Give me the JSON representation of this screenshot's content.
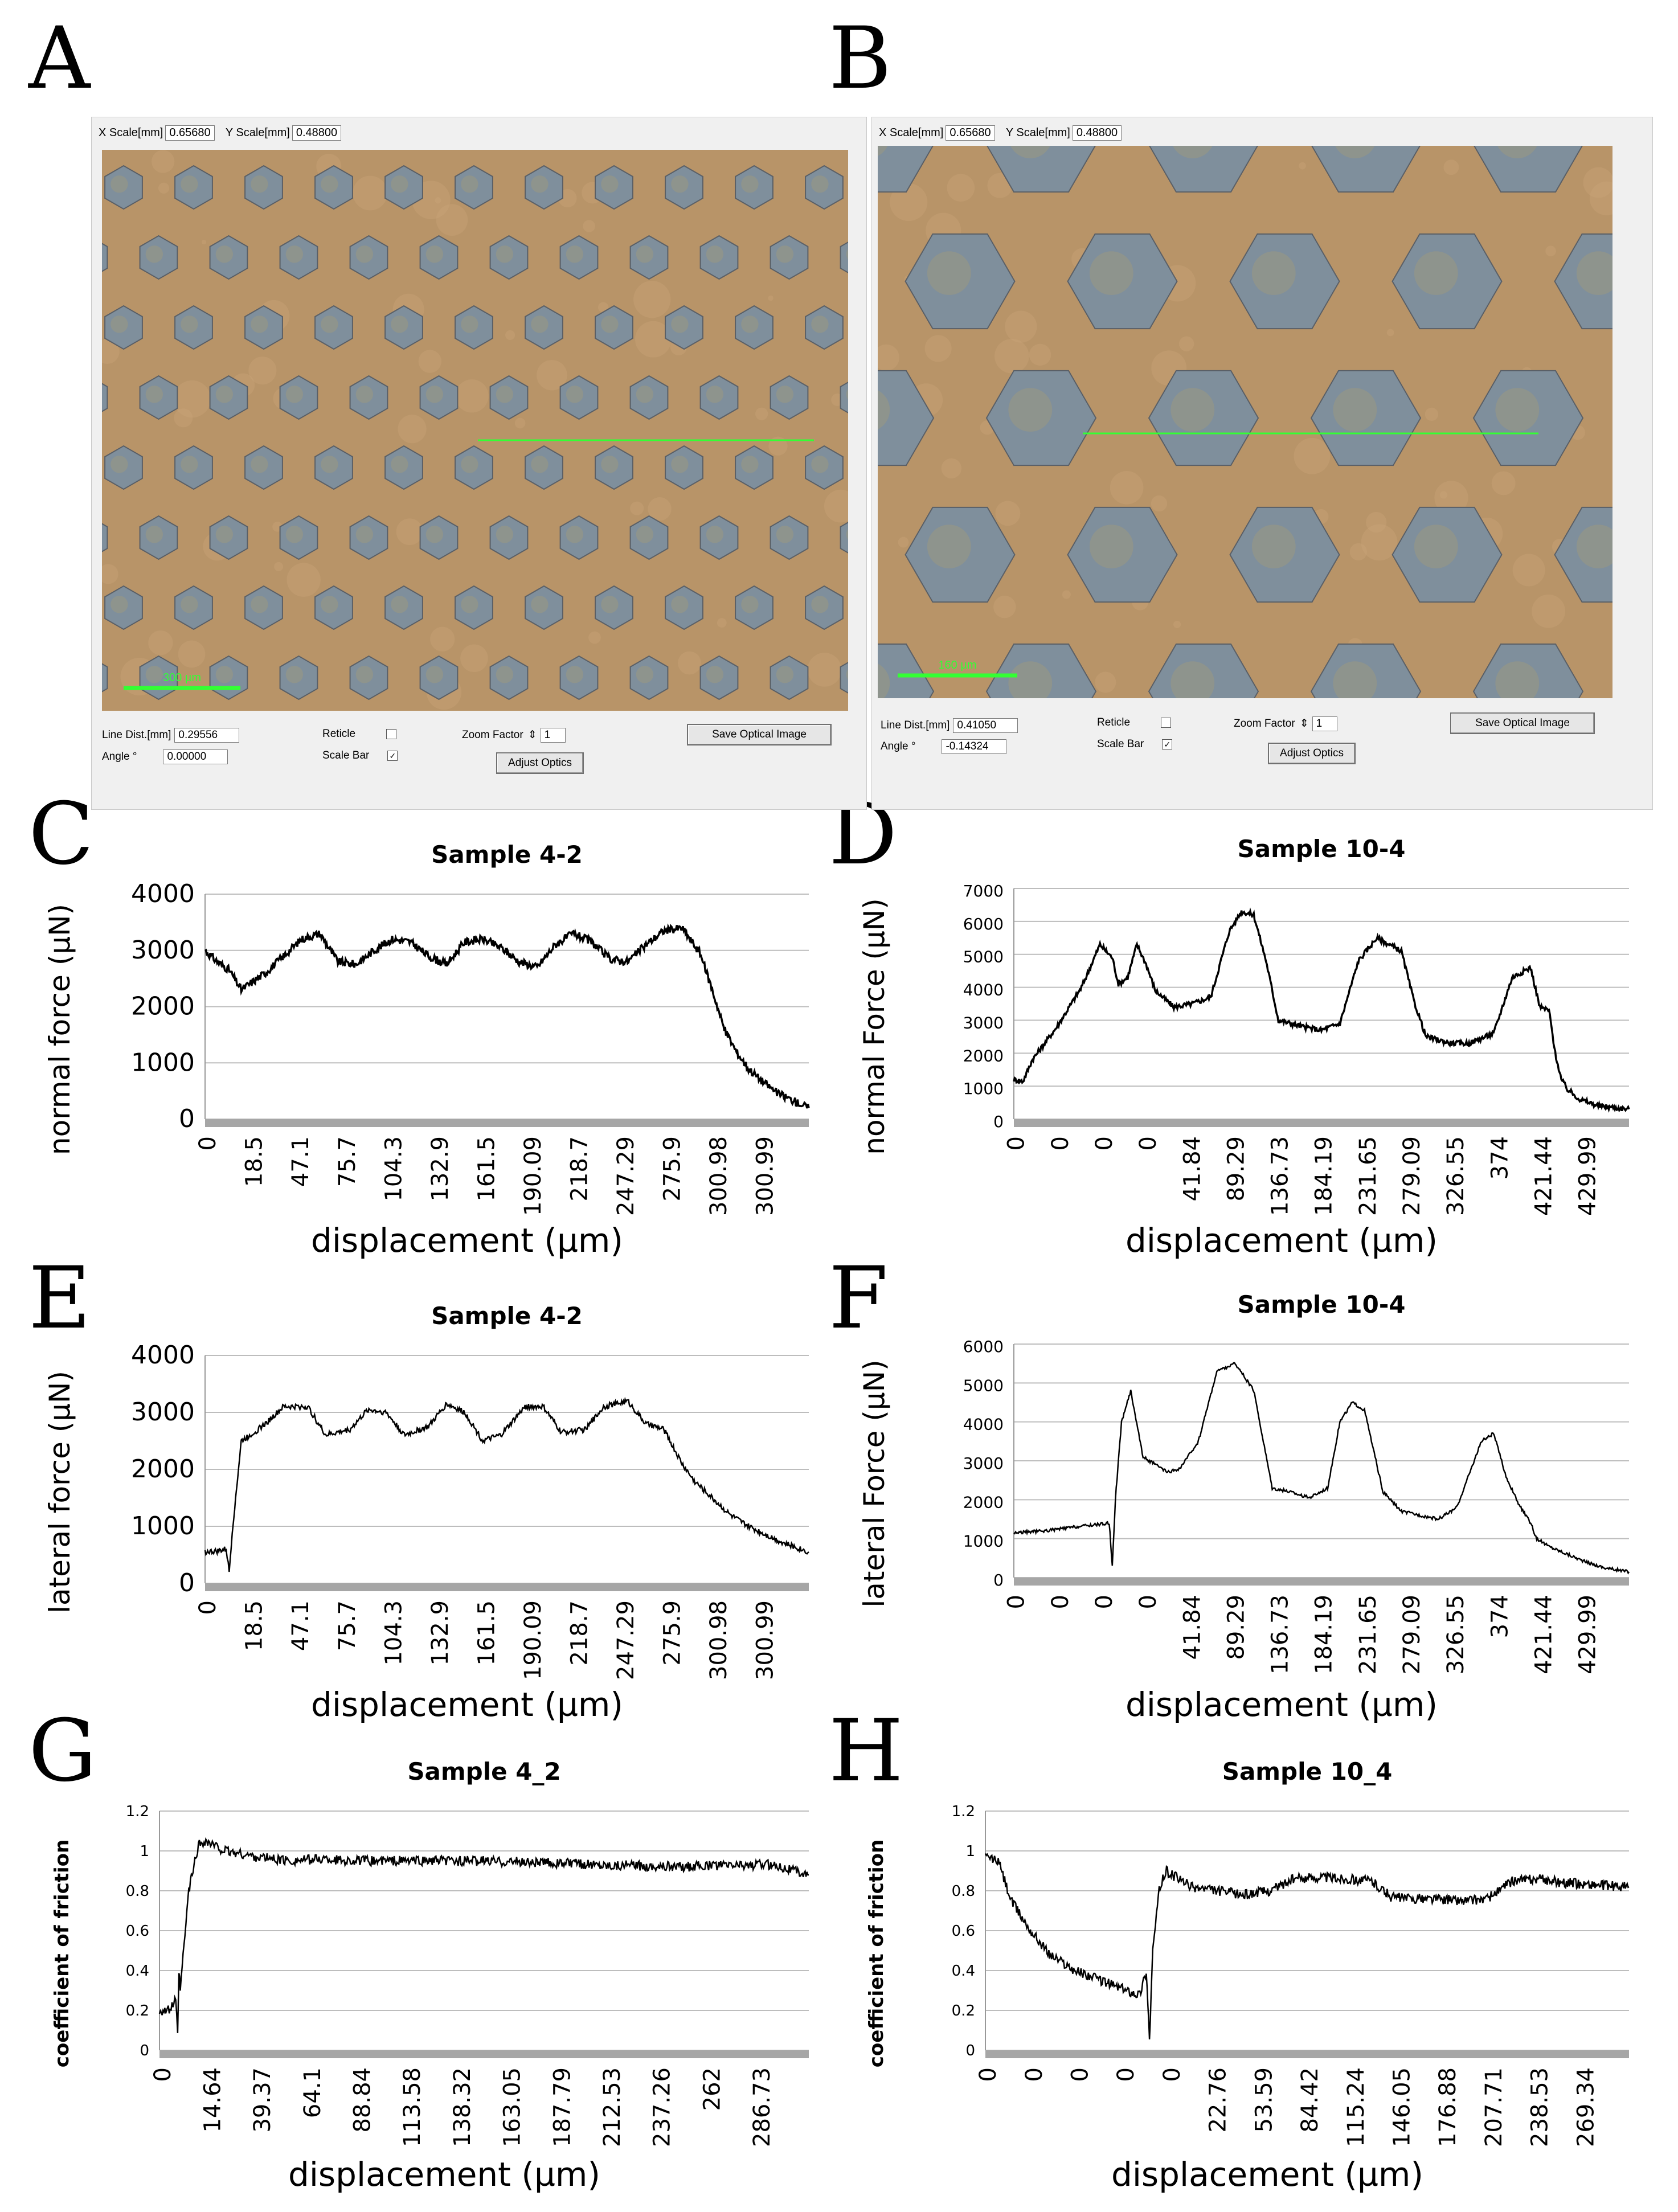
{
  "panel_letters": [
    "A",
    "B",
    "C",
    "D",
    "E",
    "F",
    "G",
    "H"
  ],
  "optical": [
    {
      "x_scale_label": "X Scale[mm]",
      "x_scale": "0.65680",
      "y_scale_label": "Y Scale[mm]",
      "y_scale": "0.48800",
      "line_dist_label": "Line Dist.[mm]",
      "line_dist": "0.29556",
      "angle_label": "Angle °",
      "angle": "0.00000",
      "reticle_label": "Reticle",
      "reticle_checked": "",
      "scale_bar_label": "Scale Bar",
      "scale_bar_checked": "✓",
      "zoom_label": "Zoom Factor",
      "zoom_value": "1",
      "save_label": "Save Optical Image",
      "adjust_label": "Adjust Optics",
      "scale_bar_text": "300 µm"
    },
    {
      "x_scale_label": "X Scale[mm]",
      "x_scale": "0.65680",
      "y_scale_label": "Y Scale[mm]",
      "y_scale": "0.48800",
      "line_dist_label": "Line Dist.[mm]",
      "line_dist": "0.41050",
      "angle_label": "Angle °",
      "angle": "-0.14324",
      "reticle_label": "Reticle",
      "reticle_checked": "",
      "scale_bar_label": "Scale Bar",
      "scale_bar_checked": "✓",
      "zoom_label": "Zoom Factor",
      "zoom_value": "1",
      "save_label": "Save Optical Image",
      "adjust_label": "Adjust Optics",
      "scale_bar_text": "160 µm"
    }
  ],
  "colors": {
    "line": "#000000",
    "grid": "#bdbdbd",
    "axis_bar": "#a6a6a6",
    "substrate": "#b89468",
    "hex_fill": "#7f8f9c",
    "trace": "#33ff33"
  },
  "chart_data": [
    {
      "panel": "C",
      "type": "line",
      "title": "Sample 4-2",
      "ylabel": "normal force (µN)",
      "xlabel": "displacement (µm)",
      "ylim": [
        0,
        4000
      ],
      "yticks": [
        0,
        1000,
        2000,
        3000,
        4000
      ],
      "xticks": [
        "0",
        "18.5",
        "47.1",
        "75.7",
        "104.3",
        "132.9",
        "161.5",
        "190.09",
        "218.7",
        "247.29",
        "275.9",
        "300.98",
        "300.99"
      ],
      "x": [
        0,
        0.02,
        0.04,
        0.06,
        0.08,
        0.1,
        0.13,
        0.16,
        0.19,
        0.22,
        0.25,
        0.28,
        0.31,
        0.34,
        0.37,
        0.4,
        0.43,
        0.46,
        0.49,
        0.52,
        0.55,
        0.58,
        0.61,
        0.64,
        0.67,
        0.7,
        0.73,
        0.76,
        0.79,
        0.81,
        0.82,
        0.84,
        0.86,
        0.88,
        0.9,
        0.92,
        0.95,
        1.0
      ],
      "values": [
        3000,
        2800,
        2650,
        2300,
        2450,
        2600,
        2900,
        3200,
        3300,
        2800,
        2750,
        3000,
        3200,
        3150,
        2900,
        2750,
        3150,
        3200,
        3050,
        2800,
        2700,
        3100,
        3300,
        3150,
        2850,
        2800,
        3100,
        3350,
        3400,
        3100,
        2950,
        2300,
        1600,
        1200,
        900,
        700,
        450,
        200
      ],
      "noise": 70
    },
    {
      "panel": "D",
      "type": "line",
      "title": "Sample 10-4",
      "ylabel": "normal Force (µN)",
      "xlabel": "displacement (µm)",
      "ylim": [
        0,
        7000
      ],
      "yticks": [
        0,
        1000,
        2000,
        3000,
        4000,
        5000,
        6000,
        7000
      ],
      "xticks": [
        "0",
        "0",
        "0",
        "0",
        "41.84",
        "89.29",
        "136.73",
        "184.19",
        "231.65",
        "279.09",
        "326.55",
        "374",
        "421.44",
        "429.99"
      ],
      "x": [
        0,
        0.015,
        0.03,
        0.07,
        0.11,
        0.14,
        0.16,
        0.17,
        0.185,
        0.2,
        0.215,
        0.23,
        0.26,
        0.29,
        0.32,
        0.35,
        0.37,
        0.39,
        0.41,
        0.43,
        0.45,
        0.47,
        0.5,
        0.53,
        0.56,
        0.59,
        0.61,
        0.63,
        0.65,
        0.67,
        0.69,
        0.71,
        0.74,
        0.78,
        0.81,
        0.84,
        0.855,
        0.87,
        0.88,
        0.89,
        0.9,
        0.92,
        0.95,
        1.0
      ],
      "values": [
        1200,
        1150,
        1800,
        2800,
        4000,
        5300,
        4900,
        4100,
        4300,
        5300,
        4700,
        3900,
        3400,
        3500,
        3700,
        5700,
        6300,
        6200,
        4800,
        3000,
        2900,
        2800,
        2700,
        2900,
        4800,
        5500,
        5300,
        5100,
        3600,
        2500,
        2400,
        2300,
        2300,
        2600,
        4300,
        4600,
        3400,
        3300,
        2000,
        1200,
        900,
        600,
        400,
        300
      ],
      "noise": 80
    },
    {
      "panel": "E",
      "type": "line",
      "title": "Sample 4-2",
      "ylabel": "lateral force (µN)",
      "xlabel": "displacement (µm)",
      "ylim": [
        0,
        4000
      ],
      "yticks": [
        0,
        1000,
        2000,
        3000,
        4000
      ],
      "xticks": [
        "0",
        "18.5",
        "47.1",
        "75.7",
        "104.3",
        "132.9",
        "161.5",
        "190.09",
        "218.7",
        "247.29",
        "275.9",
        "300.98",
        "300.99"
      ],
      "x": [
        0,
        0.02,
        0.035,
        0.04,
        0.045,
        0.06,
        0.075,
        0.1,
        0.13,
        0.17,
        0.2,
        0.24,
        0.27,
        0.3,
        0.33,
        0.37,
        0.4,
        0.43,
        0.46,
        0.49,
        0.53,
        0.56,
        0.59,
        0.63,
        0.66,
        0.7,
        0.73,
        0.76,
        0.79,
        0.81,
        0.84,
        0.87,
        0.9,
        0.93,
        0.96,
        1.0
      ],
      "values": [
        550,
        560,
        600,
        200,
        900,
        2500,
        2600,
        2800,
        3100,
        3100,
        2600,
        2700,
        3050,
        3000,
        2600,
        2750,
        3150,
        3000,
        2500,
        2600,
        3100,
        3100,
        2650,
        2700,
        3100,
        3200,
        2800,
        2700,
        2100,
        1800,
        1500,
        1200,
        1000,
        850,
        700,
        550
      ],
      "noise": 50
    },
    {
      "panel": "F",
      "type": "line",
      "title": "Sample 10-4",
      "ylabel": "lateral Force (µN)",
      "xlabel": "displacement (µm)",
      "ylim": [
        0,
        6000
      ],
      "yticks": [
        0,
        1000,
        2000,
        3000,
        4000,
        5000,
        6000
      ],
      "xticks": [
        "0",
        "0",
        "0",
        "0",
        "41.84",
        "89.29",
        "136.73",
        "184.19",
        "231.65",
        "279.09",
        "326.55",
        "374",
        "421.44",
        "429.99"
      ],
      "x": [
        0,
        0.05,
        0.1,
        0.155,
        0.16,
        0.165,
        0.175,
        0.19,
        0.21,
        0.23,
        0.25,
        0.27,
        0.3,
        0.33,
        0.36,
        0.39,
        0.42,
        0.45,
        0.48,
        0.51,
        0.53,
        0.55,
        0.57,
        0.6,
        0.63,
        0.66,
        0.69,
        0.72,
        0.76,
        0.78,
        0.8,
        0.82,
        0.84,
        0.85,
        0.87,
        0.9,
        0.93,
        0.96,
        1.0
      ],
      "values": [
        1150,
        1200,
        1300,
        1400,
        300,
        2000,
        4000,
        4800,
        3100,
        2900,
        2700,
        2800,
        3500,
        5300,
        5500,
        4800,
        2300,
        2200,
        2050,
        2300,
        4000,
        4500,
        4300,
        2200,
        1700,
        1600,
        1500,
        1800,
        3500,
        3700,
        2600,
        1900,
        1400,
        1000,
        800,
        600,
        400,
        250,
        150
      ],
      "noise": 40
    },
    {
      "panel": "G",
      "type": "line",
      "title": "Sample 4_2",
      "ylabel": "coefficient of friction",
      "xlabel": "displacement (µm)",
      "ylim": [
        0,
        1.2
      ],
      "yticks": [
        0,
        0.2,
        0.4,
        0.6,
        0.8,
        1,
        1.2
      ],
      "xticks": [
        "0",
        "14.64",
        "39.37",
        "64.1",
        "88.84",
        "113.58",
        "138.32",
        "163.05",
        "187.79",
        "212.53",
        "237.26",
        "262",
        "286.73"
      ],
      "x": [
        0,
        0.015,
        0.025,
        0.028,
        0.03,
        0.032,
        0.045,
        0.06,
        0.07,
        0.1,
        0.15,
        0.2,
        0.25,
        0.3,
        0.4,
        0.5,
        0.6,
        0.7,
        0.8,
        0.9,
        0.95,
        0.98,
        1.0
      ],
      "values": [
        0.2,
        0.2,
        0.25,
        0.07,
        0.4,
        0.3,
        0.8,
        1.03,
        1.05,
        1.0,
        0.97,
        0.95,
        0.96,
        0.95,
        0.95,
        0.95,
        0.94,
        0.93,
        0.92,
        0.93,
        0.93,
        0.9,
        0.88
      ],
      "noise": 0.025
    },
    {
      "panel": "H",
      "type": "line",
      "title": "Sample 10_4",
      "ylabel": "coefficient of friction",
      "xlabel": "displacement (µm)",
      "ylim": [
        0,
        1.2
      ],
      "yticks": [
        0,
        0.2,
        0.4,
        0.6,
        0.8,
        1,
        1.2
      ],
      "xticks": [
        "0",
        "0",
        "0",
        "0",
        "0",
        "22.76",
        "53.59",
        "84.42",
        "115.24",
        "146.05",
        "176.88",
        "207.71",
        "238.53",
        "269.34"
      ],
      "x": [
        0,
        0.02,
        0.04,
        0.07,
        0.1,
        0.14,
        0.18,
        0.22,
        0.24,
        0.25,
        0.255,
        0.26,
        0.27,
        0.28,
        0.29,
        0.32,
        0.36,
        0.4,
        0.44,
        0.48,
        0.52,
        0.56,
        0.6,
        0.63,
        0.66,
        0.7,
        0.74,
        0.78,
        0.82,
        0.86,
        0.9,
        0.95,
        1.0
      ],
      "values": [
        0.97,
        0.95,
        0.75,
        0.6,
        0.48,
        0.4,
        0.35,
        0.3,
        0.28,
        0.4,
        0.06,
        0.5,
        0.8,
        0.9,
        0.88,
        0.82,
        0.8,
        0.78,
        0.8,
        0.86,
        0.87,
        0.86,
        0.85,
        0.77,
        0.76,
        0.76,
        0.75,
        0.76,
        0.85,
        0.86,
        0.84,
        0.83,
        0.82
      ],
      "noise": 0.025
    }
  ]
}
